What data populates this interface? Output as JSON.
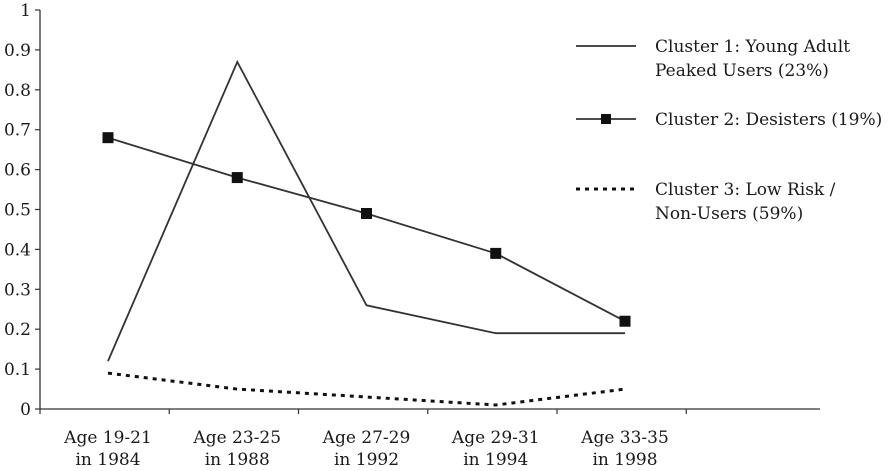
{
  "chart_data": {
    "type": "line",
    "title": "",
    "xlabel": "",
    "ylabel": "",
    "ylim": [
      0,
      1
    ],
    "yticks": [
      "0",
      "0.1",
      "0.2",
      "0.3",
      "0.4",
      "0.5",
      "0.6",
      "0.7",
      "0.8",
      "0.9",
      "1"
    ],
    "grid": false,
    "legend_position": "right",
    "categories": [
      [
        "Age 19-21",
        "in 1984"
      ],
      [
        "Age 23-25",
        "in 1988"
      ],
      [
        "Age 27-29",
        "in 1992"
      ],
      [
        "Age 29-31",
        "in 1994"
      ],
      [
        "Age 33-35",
        "in 1998"
      ]
    ],
    "series": [
      {
        "name_lines": [
          "Cluster 1: Young Adult",
          "Peaked Users (23%)"
        ],
        "values": [
          0.12,
          0.87,
          0.26,
          0.19,
          0.19
        ],
        "style": "solid",
        "marker": "none",
        "color": "#333333"
      },
      {
        "name_lines": [
          "Cluster 2: Desisters (19%)"
        ],
        "values": [
          0.68,
          0.58,
          0.49,
          0.39,
          0.22
        ],
        "style": "solid",
        "marker": "square",
        "color": "#333333"
      },
      {
        "name_lines": [
          "Cluster 3: Low Risk /",
          "Non-Users (59%)"
        ],
        "values": [
          0.09,
          0.05,
          0.03,
          0.01,
          0.05
        ],
        "style": "dotted",
        "marker": "none",
        "color": "#111111"
      }
    ]
  }
}
